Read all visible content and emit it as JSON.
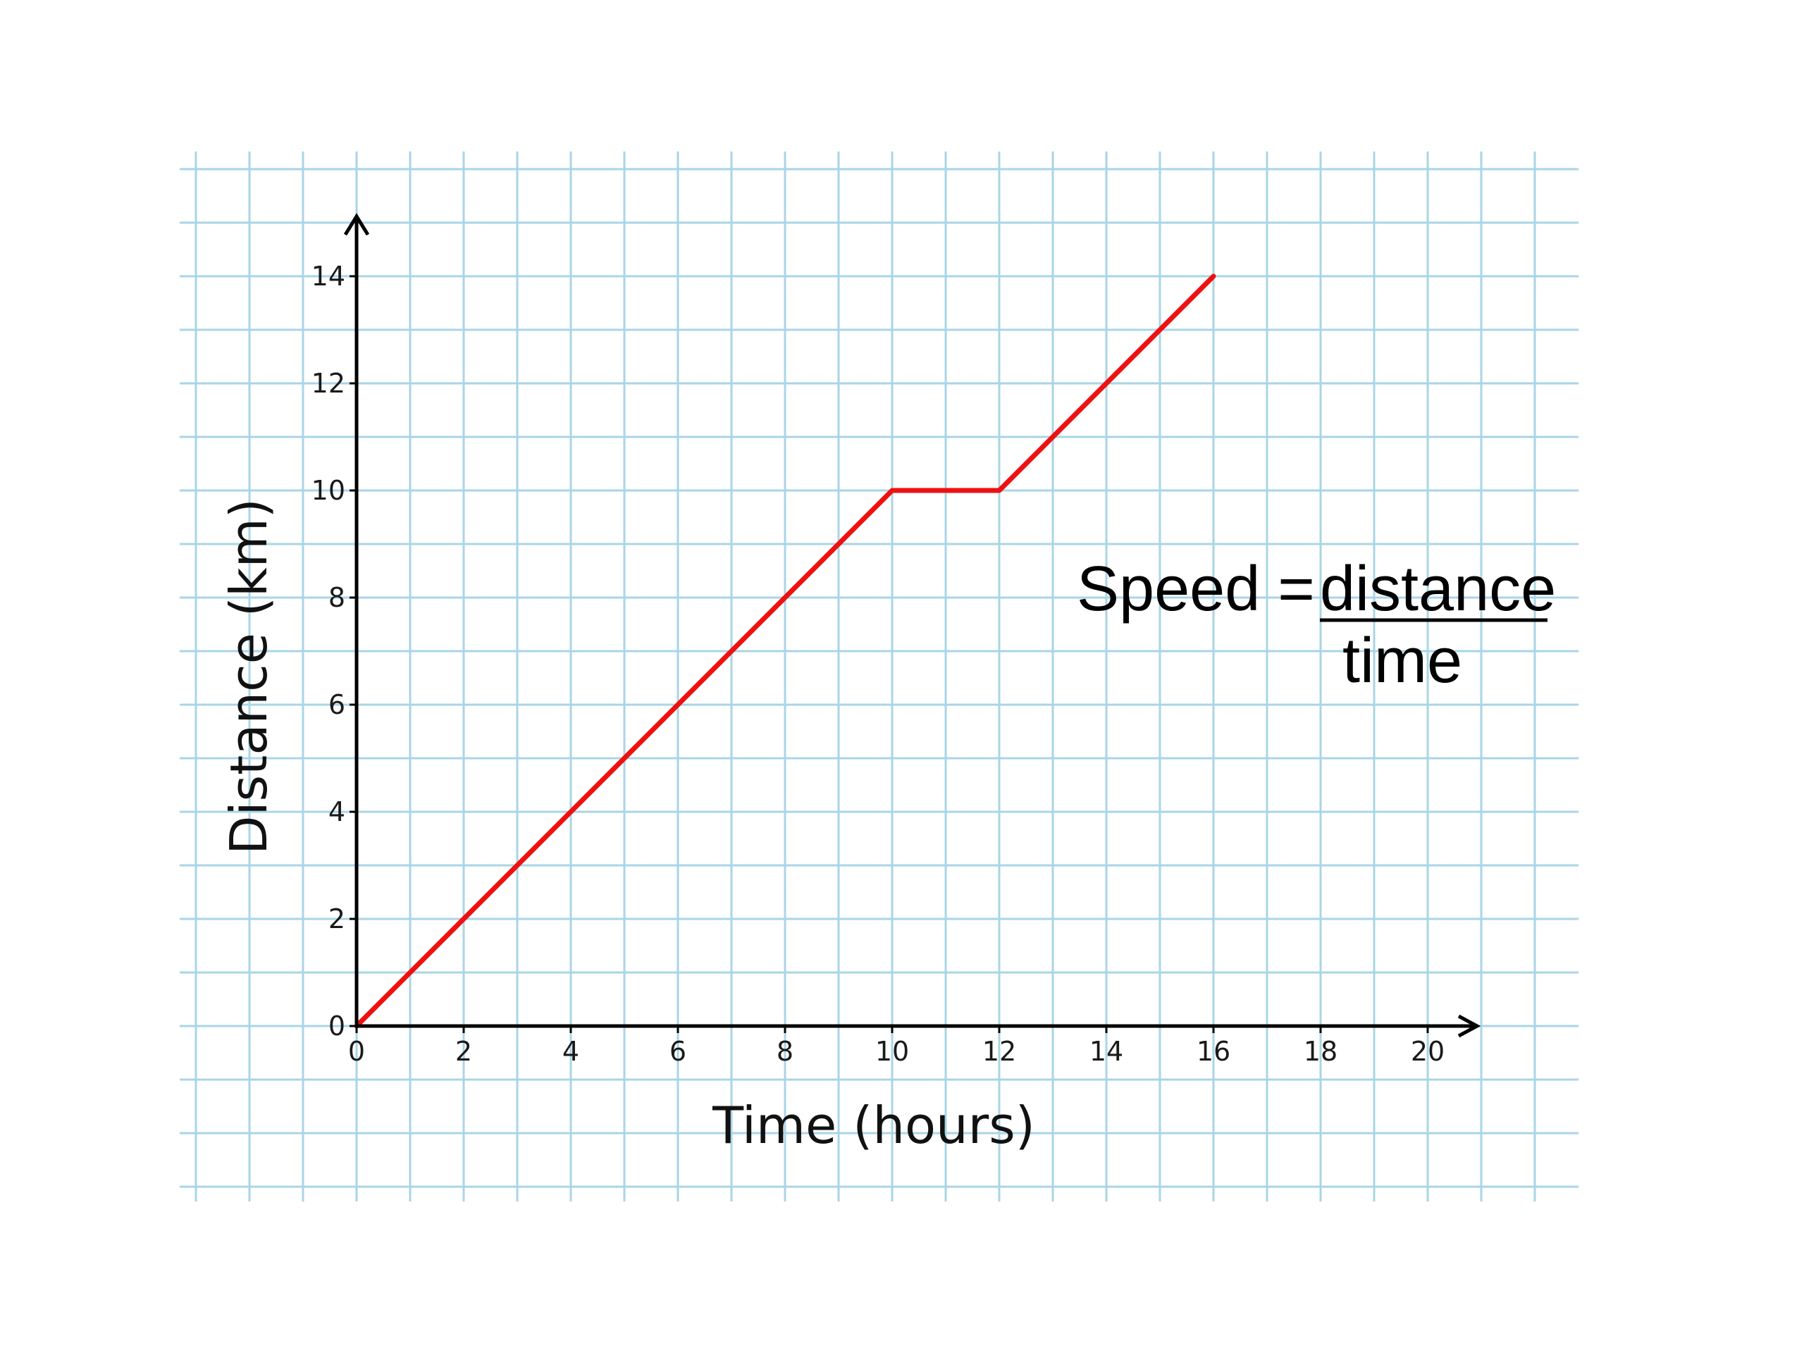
{
  "colors": {
    "background": "#ffffff",
    "grid": "#a9d5e6",
    "axis": "#000000",
    "series": "#ee1111"
  },
  "chart_data": {
    "type": "line",
    "title": "",
    "xlabel": "Time (hours)",
    "ylabel": "Distance (km)",
    "xlim": [
      0,
      20
    ],
    "ylim": [
      0,
      14
    ],
    "xticks": [
      "0",
      "2",
      "4",
      "6",
      "8",
      "10",
      "12",
      "14",
      "16",
      "18",
      "20"
    ],
    "yticks": [
      "0",
      "2",
      "4",
      "6",
      "8",
      "10",
      "12",
      "14"
    ],
    "grid": true,
    "legend": "none",
    "series": [
      {
        "x": [
          0,
          10,
          12,
          16
        ],
        "y": [
          0,
          10,
          10,
          14
        ]
      }
    ],
    "annotation": {
      "lhs": "Speed = ",
      "numerator": "distance",
      "denominator": "time"
    }
  }
}
